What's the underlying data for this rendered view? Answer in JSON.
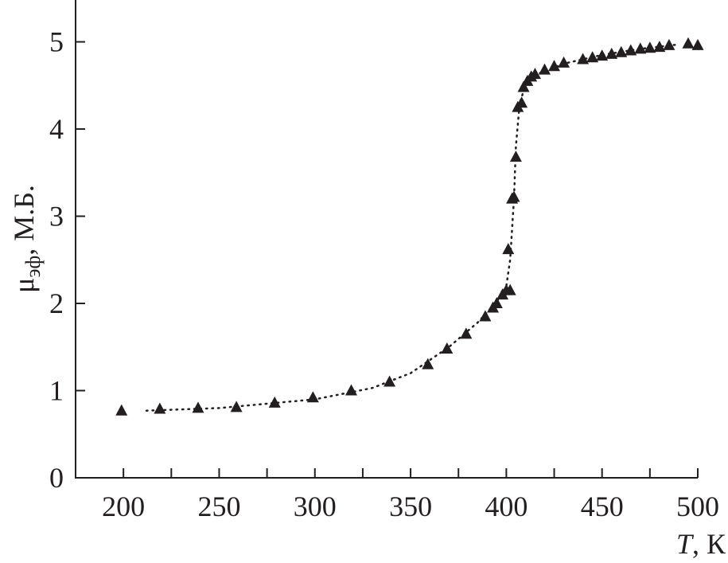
{
  "chart_data": {
    "type": "scatter",
    "xlabel": [
      "T",
      ", К"
    ],
    "ylabel": [
      "μ",
      "эф",
      ", М.Б."
    ],
    "xlim": [
      175,
      500
    ],
    "ylim": [
      0,
      5.48
    ],
    "xticks": [
      200,
      250,
      300,
      350,
      400,
      450,
      500
    ],
    "xticks_minor": [
      225,
      275,
      325,
      375,
      425,
      475
    ],
    "yticks": [
      0,
      1,
      2,
      3,
      4,
      5
    ],
    "grid": false,
    "series": [
      {
        "color": "#231f20",
        "marker": "triangle",
        "x": [
          199,
          219,
          239,
          259,
          279,
          299,
          319,
          339,
          359,
          369,
          379,
          389,
          393,
          395,
          398,
          400,
          402,
          401,
          403,
          404,
          405,
          406,
          408,
          409,
          411,
          413,
          415,
          420,
          425,
          430,
          440,
          445,
          450,
          455,
          460,
          465,
          470,
          475,
          480,
          485,
          495,
          500
        ],
        "values": [
          0.77,
          0.79,
          0.8,
          0.81,
          0.86,
          0.92,
          1.0,
          1.1,
          1.3,
          1.48,
          1.65,
          1.85,
          1.95,
          2.0,
          2.1,
          2.15,
          2.15,
          2.62,
          3.2,
          3.22,
          3.68,
          4.25,
          4.3,
          4.48,
          4.55,
          4.6,
          4.63,
          4.68,
          4.72,
          4.76,
          4.8,
          4.82,
          4.84,
          4.86,
          4.88,
          4.9,
          4.92,
          4.93,
          4.94,
          4.96,
          4.98,
          4.96
        ]
      },
      {
        "color": "#231f20",
        "line": "dotted",
        "x": [
          212,
          250,
          300,
          330,
          350,
          370,
          385,
          395,
          400,
          402,
          404,
          405,
          407,
          410,
          415,
          430,
          450,
          470,
          490
        ],
        "values": [
          0.77,
          0.8,
          0.9,
          1.03,
          1.2,
          1.5,
          1.78,
          2.02,
          2.2,
          2.5,
          3.2,
          3.8,
          4.3,
          4.5,
          4.62,
          4.75,
          4.85,
          4.92,
          4.97
        ]
      }
    ]
  }
}
